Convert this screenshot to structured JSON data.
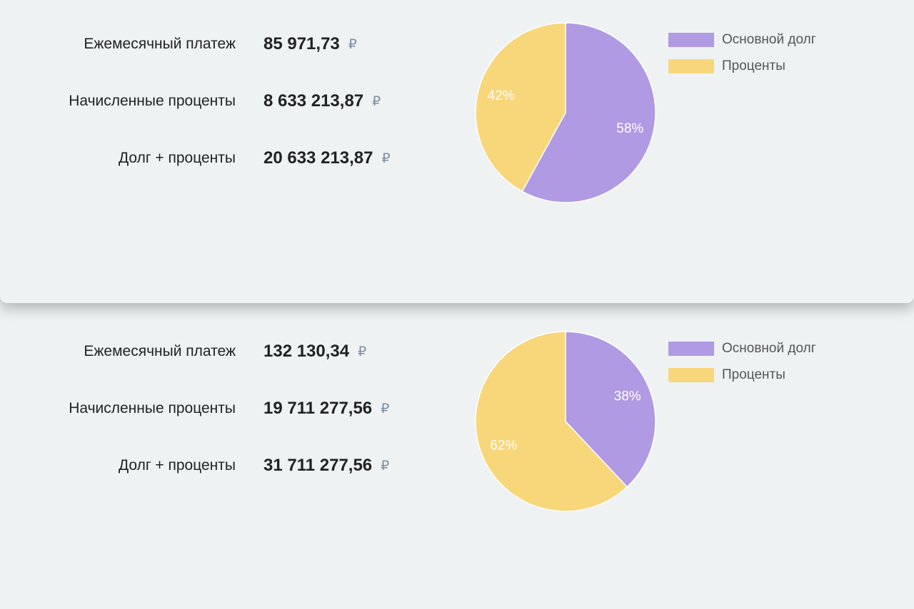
{
  "panels": [
    {
      "rows": [
        {
          "label": "Ежемесячный платеж",
          "value": "85 971,73",
          "currency": "₽"
        },
        {
          "label": "Начисленные проценты",
          "value": "8 633 213,87",
          "currency": "₽"
        },
        {
          "label": "Долг + проценты",
          "value": "20 633 213,87",
          "currency": "₽"
        }
      ]
    },
    {
      "rows": [
        {
          "label": "Ежемесячный платеж",
          "value": "132 130,34",
          "currency": "₽"
        },
        {
          "label": "Начисленные проценты",
          "value": "19 711 277,56",
          "currency": "₽"
        },
        {
          "label": "Долг + проценты",
          "value": "31 711 277,56",
          "currency": "₽"
        }
      ]
    }
  ],
  "chart_data": [
    {
      "type": "pie",
      "categories": [
        "Основной долг",
        "Проценты"
      ],
      "values": [
        58,
        42
      ],
      "value_labels": [
        "58%",
        "42%"
      ],
      "colors": [
        "#b09ae3",
        "#f8d67a"
      ],
      "legend": "right"
    },
    {
      "type": "pie",
      "categories": [
        "Основной долг",
        "Проценты"
      ],
      "values": [
        38,
        62
      ],
      "value_labels": [
        "38%",
        "62%"
      ],
      "colors": [
        "#b09ae3",
        "#f8d67a"
      ],
      "legend": "right"
    }
  ]
}
